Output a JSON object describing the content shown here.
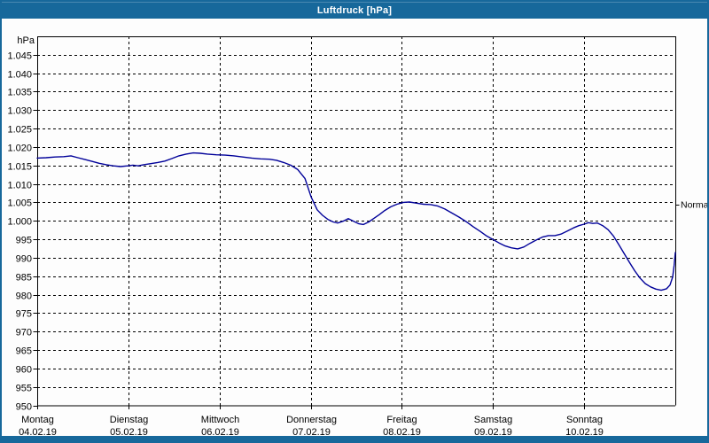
{
  "window": {
    "title": "Luftdruck [hPa]",
    "frame_color": "#17689b",
    "title_text_color": "#ffffff"
  },
  "chart_data": {
    "type": "line",
    "title": "Luftdruck [hPa]",
    "unit_label": "hPa",
    "ylim": [
      950,
      1050
    ],
    "x_hours_span": 168,
    "grid": "dashed",
    "legend_position": "none",
    "axis_color": "#000000",
    "y_ticks": [
      {
        "value": 1045,
        "label": "1.045"
      },
      {
        "value": 1040,
        "label": "1.040"
      },
      {
        "value": 1035,
        "label": "1.035"
      },
      {
        "value": 1030,
        "label": "1.030"
      },
      {
        "value": 1025,
        "label": "1.025"
      },
      {
        "value": 1020,
        "label": "1.020"
      },
      {
        "value": 1015,
        "label": "1.015"
      },
      {
        "value": 1010,
        "label": "1.010"
      },
      {
        "value": 1005,
        "label": "1.005"
      },
      {
        "value": 1000,
        "label": "1.000"
      },
      {
        "value": 995,
        "label": "995"
      },
      {
        "value": 990,
        "label": "990"
      },
      {
        "value": 985,
        "label": "985"
      },
      {
        "value": 980,
        "label": "980"
      },
      {
        "value": 975,
        "label": "975"
      },
      {
        "value": 970,
        "label": "970"
      },
      {
        "value": 965,
        "label": "965"
      },
      {
        "value": 960,
        "label": "960"
      },
      {
        "value": 955,
        "label": "955"
      },
      {
        "value": 950,
        "label": "950"
      }
    ],
    "x_days": [
      {
        "name": "Montag",
        "date": "04.02.19"
      },
      {
        "name": "Dienstag",
        "date": "05.02.19"
      },
      {
        "name": "Mittwoch",
        "date": "06.02.19"
      },
      {
        "name": "Donnerstag",
        "date": "07.02.19"
      },
      {
        "name": "Freitag",
        "date": "08.02.19"
      },
      {
        "name": "Samstag",
        "date": "09.02.19"
      },
      {
        "name": "Sonntag",
        "date": "10.02.19"
      }
    ],
    "normal_marker": {
      "label": "Normal",
      "value": 1004.5
    },
    "series": [
      {
        "name": "Luftdruck",
        "color": "#000099",
        "points": [
          [
            0,
            1017.0
          ],
          [
            2.3,
            1017.1
          ],
          [
            4.7,
            1017.3
          ],
          [
            7.0,
            1017.4
          ],
          [
            8.9,
            1017.6
          ],
          [
            10.7,
            1017.1
          ],
          [
            12.6,
            1016.6
          ],
          [
            14.5,
            1016.1
          ],
          [
            16.3,
            1015.6
          ],
          [
            18.2,
            1015.2
          ],
          [
            20.1,
            1014.9
          ],
          [
            21.9,
            1014.7
          ],
          [
            23.8,
            1014.9
          ],
          [
            25.2,
            1015.1
          ],
          [
            26.6,
            1014.9
          ],
          [
            28.0,
            1015.2
          ],
          [
            29.9,
            1015.5
          ],
          [
            31.7,
            1015.8
          ],
          [
            33.6,
            1016.2
          ],
          [
            35.5,
            1016.9
          ],
          [
            37.3,
            1017.6
          ],
          [
            39.2,
            1018.1
          ],
          [
            41.1,
            1018.4
          ],
          [
            42.9,
            1018.3
          ],
          [
            44.8,
            1018.1
          ],
          [
            47.1,
            1017.9
          ],
          [
            49.5,
            1017.8
          ],
          [
            51.8,
            1017.6
          ],
          [
            54.1,
            1017.3
          ],
          [
            56.5,
            1017.0
          ],
          [
            58.8,
            1016.8
          ],
          [
            61.1,
            1016.7
          ],
          [
            63.0,
            1016.4
          ],
          [
            64.9,
            1015.8
          ],
          [
            66.7,
            1015.1
          ],
          [
            68.6,
            1013.9
          ],
          [
            70.5,
            1011.5
          ],
          [
            72.1,
            1006.5
          ],
          [
            73.7,
            1003.0
          ],
          [
            75.1,
            1001.5
          ],
          [
            76.5,
            1000.4
          ],
          [
            77.9,
            999.7
          ],
          [
            79.1,
            999.4
          ],
          [
            80.5,
            999.9
          ],
          [
            81.9,
            1000.6
          ],
          [
            83.3,
            999.9
          ],
          [
            84.7,
            999.2
          ],
          [
            85.9,
            999.0
          ],
          [
            87.3,
            999.7
          ],
          [
            88.7,
            1000.7
          ],
          [
            90.1,
            1001.7
          ],
          [
            91.5,
            1002.8
          ],
          [
            93.1,
            1003.8
          ],
          [
            94.7,
            1004.5
          ],
          [
            96.4,
            1005.0
          ],
          [
            98.0,
            1005.1
          ],
          [
            99.9,
            1004.8
          ],
          [
            101.7,
            1004.5
          ],
          [
            103.6,
            1004.4
          ],
          [
            105.5,
            1004.0
          ],
          [
            107.3,
            1003.2
          ],
          [
            109.2,
            1002.1
          ],
          [
            111.1,
            1001.0
          ],
          [
            112.9,
            999.8
          ],
          [
            114.8,
            998.4
          ],
          [
            116.7,
            997.1
          ],
          [
            118.3,
            995.9
          ],
          [
            119.9,
            995.0
          ],
          [
            121.6,
            994.0
          ],
          [
            123.2,
            993.2
          ],
          [
            124.8,
            992.7
          ],
          [
            126.5,
            992.4
          ],
          [
            128.1,
            992.9
          ],
          [
            129.7,
            993.9
          ],
          [
            131.4,
            994.8
          ],
          [
            133.0,
            995.6
          ],
          [
            134.6,
            996.0
          ],
          [
            136.3,
            996.0
          ],
          [
            137.9,
            996.4
          ],
          [
            139.5,
            997.2
          ],
          [
            141.2,
            998.1
          ],
          [
            142.6,
            998.7
          ],
          [
            144.0,
            999.1
          ],
          [
            145.1,
            999.5
          ],
          [
            146.3,
            999.3
          ],
          [
            147.5,
            999.4
          ],
          [
            148.9,
            998.7
          ],
          [
            150.3,
            997.6
          ],
          [
            151.7,
            995.9
          ],
          [
            153.1,
            993.6
          ],
          [
            154.5,
            991.2
          ],
          [
            155.9,
            988.8
          ],
          [
            157.3,
            986.5
          ],
          [
            158.7,
            984.5
          ],
          [
            160.1,
            983.0
          ],
          [
            161.5,
            982.1
          ],
          [
            162.9,
            981.5
          ],
          [
            164.3,
            981.2
          ],
          [
            165.7,
            981.6
          ],
          [
            166.6,
            982.6
          ],
          [
            167.3,
            984.8
          ],
          [
            167.7,
            988.0
          ],
          [
            168.0,
            991.4
          ]
        ]
      }
    ]
  }
}
